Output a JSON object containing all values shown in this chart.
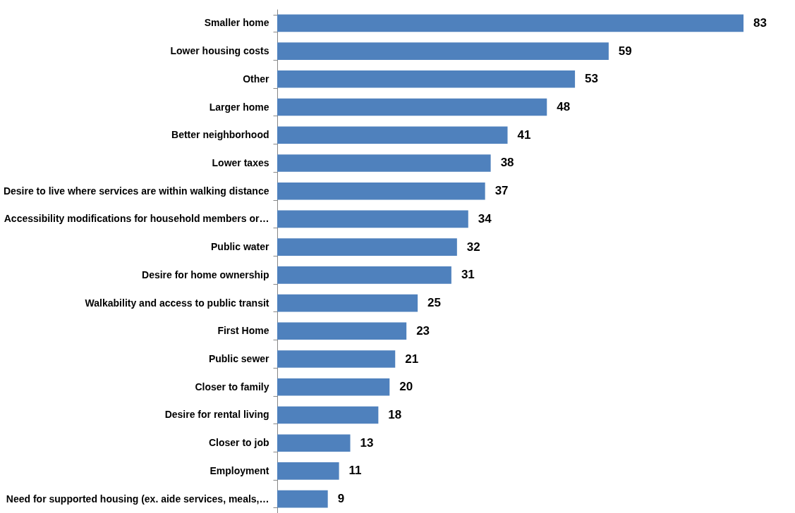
{
  "chart_data": {
    "type": "bar",
    "orientation": "horizontal",
    "data_labels": true,
    "categories": [
      "Smaller home",
      "Lower housing costs",
      "Other",
      "Larger home",
      "Better neighborhood",
      "Lower taxes",
      "Desire to live where services are within walking distance",
      "Accessibility modifications for household members or…",
      "Public water",
      "Desire for home ownership",
      "Walkability and access to public transit",
      "First Home",
      "Public sewer",
      "Closer to family",
      "Desire for rental living",
      "Closer to job",
      "Employment",
      "Need for supported housing (ex. aide services, meals,…"
    ],
    "series": [
      {
        "color": "#4f81bd",
        "values": [
          83,
          59,
          53,
          48,
          41,
          38,
          37,
          34,
          32,
          31,
          25,
          23,
          21,
          20,
          18,
          13,
          11,
          9
        ]
      }
    ]
  }
}
